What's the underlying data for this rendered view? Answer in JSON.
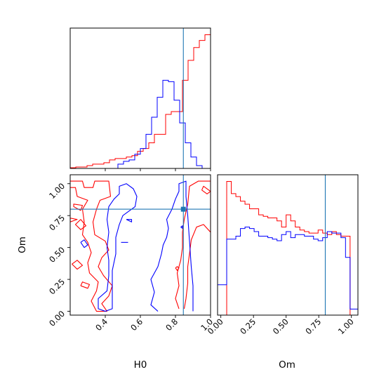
{
  "chart_data": [
    {
      "type": "histogram",
      "panel": "H0 marginal",
      "xlim": [
        0.2,
        1.0
      ],
      "truth": 0.845,
      "colors": {
        "series_0": "#ff0000",
        "series_1": "#0000ff",
        "truth": "#1f77b4"
      },
      "series": [
        {
          "color": "#ff0000",
          "edges": [
            0.2,
            0.232,
            0.264,
            0.296,
            0.328,
            0.36,
            0.392,
            0.424,
            0.456,
            0.488,
            0.52,
            0.552,
            0.584,
            0.616,
            0.648,
            0.68,
            0.712,
            0.744,
            0.776,
            0.808,
            0.84,
            0.872,
            0.904,
            0.936,
            0.968,
            1.0
          ],
          "counts": [
            0.5,
            1,
            1,
            2,
            3,
            3,
            4,
            6,
            7,
            7,
            8,
            9,
            12,
            14,
            18,
            24,
            24,
            38,
            40,
            40,
            62,
            76,
            85,
            90,
            94
          ]
        },
        {
          "color": "#0000ff",
          "edges": [
            0.472,
            0.504,
            0.536,
            0.568,
            0.6,
            0.632,
            0.664,
            0.696,
            0.728,
            0.76,
            0.792,
            0.824,
            0.856,
            0.888,
            0.92,
            0.952,
            0.984
          ],
          "counts": [
            3,
            5,
            6,
            10,
            14,
            24,
            36,
            50,
            62,
            61,
            48,
            32,
            18,
            8,
            2,
            0
          ]
        }
      ]
    },
    {
      "type": "histogram",
      "panel": "Om marginal",
      "xlim": [
        -0.025,
        1.05
      ],
      "truth": 0.8,
      "colors": {
        "series_0": "#ff0000",
        "series_1": "#0000ff",
        "truth": "#1f77b4"
      },
      "series": [
        {
          "color": "#ff0000",
          "edges": [
            -0.025,
            0.01,
            0.045,
            0.08,
            0.115,
            0.15,
            0.185,
            0.22,
            0.255,
            0.29,
            0.325,
            0.36,
            0.395,
            0.43,
            0.465,
            0.5,
            0.535,
            0.57,
            0.605,
            0.64,
            0.675,
            0.71,
            0.745,
            0.78,
            0.815,
            0.85,
            0.885,
            0.92,
            0.955,
            0.99,
            1.025,
            1.05
          ],
          "counts": [
            0,
            0,
            88,
            80,
            78,
            75,
            73,
            70,
            70,
            66,
            65,
            64,
            64,
            62,
            58,
            66,
            62,
            58,
            56,
            55,
            54,
            54,
            56,
            54,
            53,
            55,
            53,
            52,
            52,
            0,
            0
          ]
        },
        {
          "color": "#0000ff",
          "edges": [
            -0.025,
            0.01,
            0.045,
            0.08,
            0.115,
            0.15,
            0.185,
            0.22,
            0.255,
            0.29,
            0.325,
            0.36,
            0.395,
            0.43,
            0.465,
            0.5,
            0.535,
            0.57,
            0.605,
            0.64,
            0.675,
            0.71,
            0.745,
            0.78,
            0.815,
            0.85,
            0.885,
            0.92,
            0.955,
            0.99,
            1.025,
            1.05
          ],
          "counts": [
            20,
            20,
            50,
            50,
            52,
            57,
            58,
            57,
            55,
            52,
            52,
            51,
            50,
            49,
            53,
            55,
            51,
            53,
            53,
            52,
            52,
            50,
            49,
            51,
            55,
            54,
            54,
            51,
            38,
            4,
            4
          ]
        }
      ]
    },
    {
      "type": "contour",
      "panel": "H0 vs Om",
      "xlabel": "H0",
      "ylabel": "Om",
      "xlim": [
        0.2,
        1.0
      ],
      "ylim": [
        -0.03,
        1.07
      ],
      "xticks": [
        "0.4",
        "0.6",
        "0.8",
        "1.0"
      ],
      "yticks": [
        "0.00",
        "0.25",
        "0.50",
        "0.75",
        "1.00"
      ],
      "truth": {
        "x": 0.845,
        "y": 0.8
      },
      "colors": {
        "series_0": "#ff0000",
        "series_1": "#0000ff",
        "truth": "#1f77b4"
      },
      "contours": [
        {
          "color": "#ff0000",
          "points": [
            [
              0.2,
              1.02
            ],
            [
              0.27,
              1.02
            ],
            [
              0.28,
              0.97
            ],
            [
              0.33,
              0.97
            ],
            [
              0.34,
              1.02
            ],
            [
              0.42,
              1.02
            ],
            [
              0.43,
              0.9
            ],
            [
              0.37,
              0.87
            ],
            [
              0.35,
              0.8
            ],
            [
              0.33,
              0.7
            ],
            [
              0.34,
              0.6
            ],
            [
              0.4,
              0.55
            ],
            [
              0.42,
              0.48
            ],
            [
              0.38,
              0.42
            ],
            [
              0.36,
              0.35
            ],
            [
              0.39,
              0.28
            ],
            [
              0.44,
              0.2
            ],
            [
              0.42,
              0.12
            ],
            [
              0.38,
              0.06
            ],
            [
              0.41,
              0.0
            ],
            [
              0.35,
              0.0
            ],
            [
              0.32,
              0.08
            ],
            [
              0.35,
              0.16
            ],
            [
              0.36,
              0.23
            ],
            [
              0.31,
              0.3
            ],
            [
              0.3,
              0.38
            ],
            [
              0.32,
              0.46
            ],
            [
              0.3,
              0.54
            ],
            [
              0.27,
              0.6
            ],
            [
              0.28,
              0.7
            ],
            [
              0.27,
              0.8
            ],
            [
              0.3,
              0.87
            ],
            [
              0.24,
              0.9
            ],
            [
              0.23,
              0.97
            ],
            [
              0.2,
              0.97
            ]
          ]
        },
        {
          "color": "#ff0000",
          "points": [
            [
              0.2,
              0.73
            ],
            [
              0.2,
              0.7
            ],
            [
              0.24,
              0.72
            ],
            [
              0.2,
              0.73
            ]
          ]
        },
        {
          "color": "#ff0000",
          "points": [
            [
              0.26,
              0.79
            ],
            [
              0.22,
              0.82
            ],
            [
              0.22,
              0.84
            ],
            [
              0.27,
              0.83
            ],
            [
              0.26,
              0.79
            ]
          ]
        },
        {
          "color": "#ff0000",
          "points": [
            [
              0.26,
              0.72
            ],
            [
              0.23,
              0.68
            ],
            [
              0.26,
              0.64
            ],
            [
              0.29,
              0.67
            ],
            [
              0.26,
              0.72
            ]
          ]
        },
        {
          "color": "#ff0000",
          "points": [
            [
              0.21,
              0.37
            ],
            [
              0.24,
              0.33
            ],
            [
              0.27,
              0.36
            ],
            [
              0.24,
              0.4
            ],
            [
              0.21,
              0.37
            ]
          ]
        },
        {
          "color": "#ff0000",
          "points": [
            [
              0.26,
              0.2
            ],
            [
              0.3,
              0.18
            ],
            [
              0.31,
              0.21
            ],
            [
              0.27,
              0.23
            ],
            [
              0.26,
              0.2
            ]
          ]
        },
        {
          "color": "#ff0000",
          "points": [
            [
              0.82,
              0.02
            ],
            [
              0.8,
              0.1
            ],
            [
              0.82,
              0.2
            ],
            [
              0.81,
              0.3
            ],
            [
              0.83,
              0.4
            ],
            [
              0.84,
              0.5
            ],
            [
              0.84,
              0.62
            ],
            [
              0.85,
              0.72
            ],
            [
              0.87,
              0.84
            ],
            [
              0.88,
              0.98
            ],
            [
              0.93,
              1.02
            ],
            [
              1.0,
              1.02
            ],
            [
              1.0,
              0.62
            ],
            [
              0.96,
              0.68
            ],
            [
              0.92,
              0.66
            ],
            [
              0.89,
              0.56
            ],
            [
              0.88,
              0.45
            ],
            [
              0.87,
              0.35
            ],
            [
              0.87,
              0.22
            ],
            [
              0.86,
              0.1
            ],
            [
              0.85,
              0.02
            ]
          ]
        },
        {
          "color": "#ff0000",
          "points": [
            [
              0.95,
              0.95
            ],
            [
              0.98,
              0.92
            ],
            [
              1.0,
              0.94
            ],
            [
              0.96,
              0.98
            ],
            [
              0.95,
              0.95
            ]
          ]
        },
        {
          "color": "#ff0000",
          "points": [
            [
              0.8,
              0.34
            ],
            [
              0.81,
              0.32
            ],
            [
              0.82,
              0.34
            ],
            [
              0.81,
              0.35
            ],
            [
              0.8,
              0.34
            ]
          ]
        },
        {
          "color": "#0000ff",
          "points": [
            [
              0.4,
              0.0
            ],
            [
              0.36,
              0.02
            ],
            [
              0.36,
              0.1
            ],
            [
              0.41,
              0.16
            ],
            [
              0.42,
              0.28
            ],
            [
              0.42,
              0.4
            ],
            [
              0.41,
              0.5
            ],
            [
              0.42,
              0.62
            ],
            [
              0.41,
              0.72
            ],
            [
              0.42,
              0.82
            ],
            [
              0.45,
              0.88
            ],
            [
              0.48,
              0.92
            ],
            [
              0.48,
              0.98
            ],
            [
              0.52,
              1.0
            ],
            [
              0.56,
              0.96
            ],
            [
              0.58,
              0.9
            ],
            [
              0.57,
              0.82
            ],
            [
              0.53,
              0.78
            ],
            [
              0.5,
              0.75
            ],
            [
              0.48,
              0.68
            ],
            [
              0.46,
              0.58
            ],
            [
              0.46,
              0.45
            ],
            [
              0.44,
              0.32
            ],
            [
              0.44,
              0.18
            ],
            [
              0.44,
              0.02
            ],
            [
              0.4,
              0.0
            ]
          ]
        },
        {
          "color": "#0000ff",
          "points": [
            [
              0.7,
              0.0
            ],
            [
              0.66,
              0.05
            ],
            [
              0.68,
              0.15
            ],
            [
              0.66,
              0.25
            ],
            [
              0.7,
              0.35
            ],
            [
              0.72,
              0.45
            ],
            [
              0.73,
              0.52
            ],
            [
              0.75,
              0.58
            ],
            [
              0.76,
              0.65
            ],
            [
              0.75,
              0.72
            ],
            [
              0.78,
              0.8
            ],
            [
              0.8,
              0.88
            ],
            [
              0.82,
              0.94
            ],
            [
              0.82,
              1.0
            ],
            [
              0.86,
              1.02
            ],
            [
              0.86,
              0.9
            ],
            [
              0.87,
              0.75
            ],
            [
              0.88,
              0.55
            ],
            [
              0.89,
              0.35
            ],
            [
              0.9,
              0.2
            ],
            [
              0.9,
              0.0
            ]
          ]
        },
        {
          "color": "#0000ff",
          "points": [
            [
              0.26,
              0.54
            ],
            [
              0.28,
              0.5
            ],
            [
              0.3,
              0.52
            ],
            [
              0.28,
              0.56
            ],
            [
              0.26,
              0.54
            ]
          ]
        },
        {
          "color": "#0000ff",
          "points": [
            [
              0.52,
              0.72
            ],
            [
              0.55,
              0.7
            ],
            [
              0.55,
              0.72
            ],
            [
              0.52,
              0.72
            ]
          ]
        },
        {
          "color": "#0000ff",
          "points": [
            [
              0.49,
              0.54
            ],
            [
              0.53,
              0.54
            ]
          ]
        },
        {
          "color": "#0000ff",
          "points": [
            [
              0.83,
              0.66
            ],
            [
              0.84,
              0.65
            ],
            [
              0.84,
              0.67
            ],
            [
              0.83,
              0.66
            ]
          ]
        }
      ]
    }
  ],
  "marginal_om": {
    "xlabel": "Om",
    "xticks": [
      "0.00",
      "0.25",
      "0.50",
      "0.75",
      "1.00"
    ]
  }
}
